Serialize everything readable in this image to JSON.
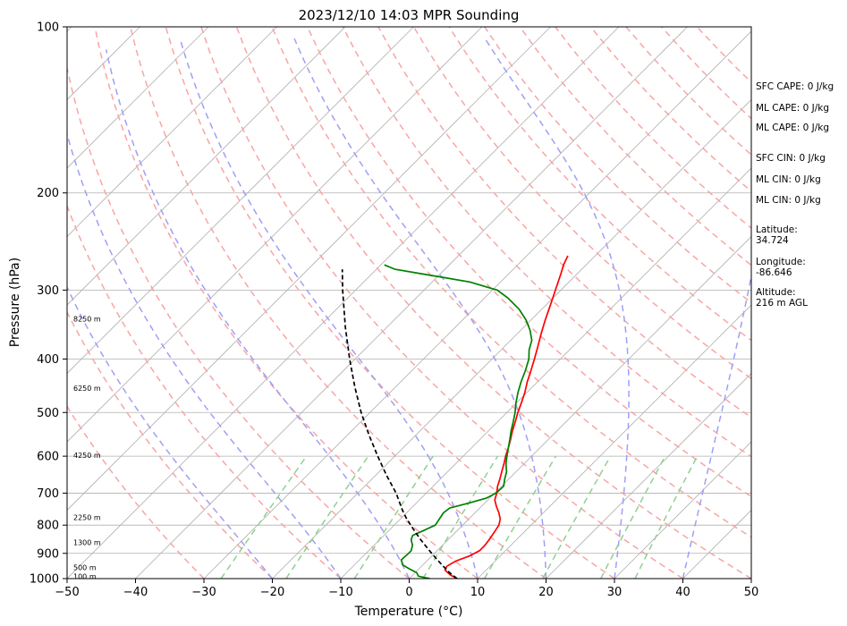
{
  "chart_data": {
    "type": "line",
    "title": "2023/12/10 14:03 MPR Sounding",
    "xlabel": "Temperature (°C)",
    "ylabel": "Pressure (hPa)",
    "xlim": [
      -50,
      50
    ],
    "ylim": [
      1000,
      100
    ],
    "y_scale": "log",
    "x_ticks": [
      -50,
      -40,
      -30,
      -20,
      -10,
      0,
      10,
      20,
      30,
      40,
      50
    ],
    "y_ticks": [
      1000,
      900,
      800,
      700,
      600,
      500,
      400,
      300,
      200,
      100
    ],
    "grid": true,
    "series": [
      {
        "role": "temperature",
        "color": "#ff0000",
        "points": [
          [
            1000,
            7.0
          ],
          [
            985,
            5.5
          ],
          [
            965,
            4.0
          ],
          [
            950,
            3.7
          ],
          [
            930,
            4.2
          ],
          [
            910,
            5.5
          ],
          [
            890,
            6.2
          ],
          [
            870,
            6.2
          ],
          [
            850,
            6.0
          ],
          [
            820,
            5.6
          ],
          [
            800,
            5.3
          ],
          [
            780,
            4.6
          ],
          [
            760,
            3.5
          ],
          [
            740,
            2.2
          ],
          [
            720,
            1.0
          ],
          [
            700,
            0.3
          ],
          [
            680,
            -0.6
          ],
          [
            660,
            -1.3
          ],
          [
            640,
            -2.1
          ],
          [
            620,
            -2.9
          ],
          [
            600,
            -3.8
          ],
          [
            580,
            -4.6
          ],
          [
            560,
            -5.5
          ],
          [
            540,
            -6.5
          ],
          [
            520,
            -7.4
          ],
          [
            500,
            -8.4
          ],
          [
            480,
            -9.3
          ],
          [
            460,
            -10.3
          ],
          [
            440,
            -11.5
          ],
          [
            420,
            -12.6
          ],
          [
            400,
            -13.8
          ],
          [
            380,
            -15.1
          ],
          [
            360,
            -16.5
          ],
          [
            340,
            -17.9
          ],
          [
            320,
            -19.3
          ],
          [
            300,
            -20.8
          ],
          [
            280,
            -22.4
          ],
          [
            270,
            -23.3
          ],
          [
            260,
            -24.0
          ]
        ]
      },
      {
        "role": "dewpoint",
        "color": "#008000",
        "points": [
          [
            1000,
            3.0
          ],
          [
            990,
            1.0
          ],
          [
            975,
            0.2
          ],
          [
            960,
            -1.4
          ],
          [
            945,
            -2.9
          ],
          [
            925,
            -3.9
          ],
          [
            905,
            -3.8
          ],
          [
            890,
            -3.8
          ],
          [
            870,
            -4.4
          ],
          [
            850,
            -5.4
          ],
          [
            835,
            -5.8
          ],
          [
            820,
            -5.0
          ],
          [
            800,
            -4.0
          ],
          [
            780,
            -4.3
          ],
          [
            760,
            -4.6
          ],
          [
            745,
            -4.4
          ],
          [
            730,
            -2.4
          ],
          [
            715,
            -0.5
          ],
          [
            700,
            0.2
          ],
          [
            680,
            0.3
          ],
          [
            660,
            -0.6
          ],
          [
            640,
            -1.4
          ],
          [
            620,
            -2.6
          ],
          [
            600,
            -3.6
          ],
          [
            580,
            -4.6
          ],
          [
            560,
            -5.6
          ],
          [
            540,
            -6.7
          ],
          [
            520,
            -7.7
          ],
          [
            500,
            -8.8
          ],
          [
            480,
            -10.1
          ],
          [
            460,
            -11.3
          ],
          [
            440,
            -12.4
          ],
          [
            420,
            -13.4
          ],
          [
            400,
            -14.6
          ],
          [
            385,
            -15.9
          ],
          [
            370,
            -16.9
          ],
          [
            355,
            -18.6
          ],
          [
            340,
            -20.7
          ],
          [
            325,
            -23.3
          ],
          [
            310,
            -26.6
          ],
          [
            300,
            -29.3
          ],
          [
            290,
            -34.5
          ],
          [
            280,
            -43.0
          ],
          [
            275,
            -47.3
          ],
          [
            270,
            -49.5
          ]
        ]
      },
      {
        "role": "parcel_profile",
        "color": "#000000",
        "style": "dashed",
        "points": [
          [
            1000,
            7.0
          ],
          [
            975,
            5.0
          ],
          [
            950,
            3.2
          ],
          [
            925,
            1.4
          ],
          [
            900,
            -0.4
          ],
          [
            875,
            -2.2
          ],
          [
            850,
            -4.0
          ],
          [
            825,
            -5.8
          ],
          [
            800,
            -7.6
          ],
          [
            775,
            -9.4
          ],
          [
            750,
            -11.1
          ],
          [
            700,
            -14.4
          ],
          [
            650,
            -18.4
          ],
          [
            600,
            -22.5
          ],
          [
            550,
            -26.8
          ],
          [
            500,
            -31.3
          ],
          [
            450,
            -35.9
          ],
          [
            400,
            -40.8
          ],
          [
            350,
            -46.1
          ],
          [
            300,
            -51.9
          ],
          [
            275,
            -55.0
          ]
        ]
      }
    ],
    "height_labels": [
      {
        "p": 990,
        "text": "100 m"
      },
      {
        "p": 955,
        "text": "500 m"
      },
      {
        "p": 860,
        "text": "1300 m"
      },
      {
        "p": 775,
        "text": "2250 m"
      },
      {
        "p": 598,
        "text": "4250 m"
      },
      {
        "p": 452,
        "text": "6250 m"
      },
      {
        "p": 338,
        "text": "8250 m"
      }
    ],
    "isotherm_start_temps": [
      -160,
      -150,
      -140,
      -130,
      -120,
      -110,
      -100,
      -90,
      -80,
      -70,
      -60,
      -50,
      -40,
      -30,
      -20,
      -10,
      0,
      10,
      20,
      30,
      40,
      50
    ],
    "dry_adiabat_temps": [
      -30,
      -20,
      -10,
      0,
      10,
      20,
      30,
      40,
      50,
      60,
      70,
      80,
      90,
      100,
      110,
      120,
      130,
      140,
      150,
      160,
      170,
      180
    ],
    "moist_adiabat_temps": [
      -20,
      -10,
      0,
      10,
      20,
      30,
      40
    ],
    "mixing_ratio_temps": [
      -27.5,
      -18,
      -8,
      2,
      11,
      19.5,
      28,
      33
    ],
    "colors": {
      "temperature": "#ff0000",
      "dewpoint": "#008000",
      "parcel": "#000000",
      "isotherm": "#b0b0b0",
      "dry_adiabat": "#f8a5a5",
      "moist_adiabat": "#9f9ff5",
      "mixing_ratio": "#8fd08f"
    }
  },
  "side_panel": {
    "sfc_cape": "SFC CAPE: 0 J/kg",
    "ml_cape_1": "ML CAPE: 0 J/kg",
    "ml_cape_2": "ML CAPE: 0 J/kg",
    "sfc_cin": "SFC CIN: 0 J/kg",
    "ml_cin_1": "ML CIN: 0 J/kg",
    "ml_cin_2": "ML CIN: 0 J/kg",
    "latitude_label": "Latitude:",
    "latitude_value": "34.724",
    "longitude_label": "Longitude:",
    "longitude_value": "-86.646",
    "altitude_label": "Altitude:",
    "altitude_value": "216 m AGL"
  }
}
